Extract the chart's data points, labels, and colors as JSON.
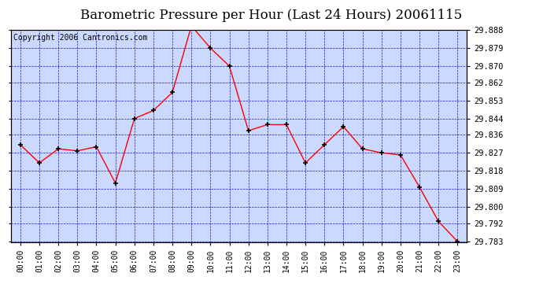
{
  "title": "Barometric Pressure per Hour (Last 24 Hours) 20061115",
  "copyright": "Copyright 2006 Cantronics.com",
  "hours": [
    "00:00",
    "01:00",
    "02:00",
    "03:00",
    "04:00",
    "05:00",
    "06:00",
    "07:00",
    "08:00",
    "09:00",
    "10:00",
    "11:00",
    "12:00",
    "13:00",
    "14:00",
    "15:00",
    "16:00",
    "17:00",
    "18:00",
    "19:00",
    "20:00",
    "21:00",
    "22:00",
    "23:00"
  ],
  "values": [
    29.831,
    29.822,
    29.829,
    29.828,
    29.83,
    29.812,
    29.844,
    29.848,
    29.857,
    29.89,
    29.879,
    29.87,
    29.838,
    29.841,
    29.841,
    29.822,
    29.831,
    29.84,
    29.829,
    29.827,
    29.826,
    29.81,
    29.793,
    29.783
  ],
  "ylim_min": 29.783,
  "ylim_max": 29.888,
  "yticks": [
    29.888,
    29.879,
    29.87,
    29.862,
    29.853,
    29.844,
    29.836,
    29.827,
    29.818,
    29.809,
    29.8,
    29.792,
    29.783
  ],
  "line_color": "red",
  "marker_color": "black",
  "bg_color": "#ffffff",
  "plot_bg_color": "#ccd9ff",
  "grid_color": "#0000cc",
  "title_color": "black",
  "tick_color": "black",
  "title_fontsize": 12,
  "copyright_fontsize": 7,
  "axis_label_fontsize": 7,
  "ytick_fontsize": 7.5
}
